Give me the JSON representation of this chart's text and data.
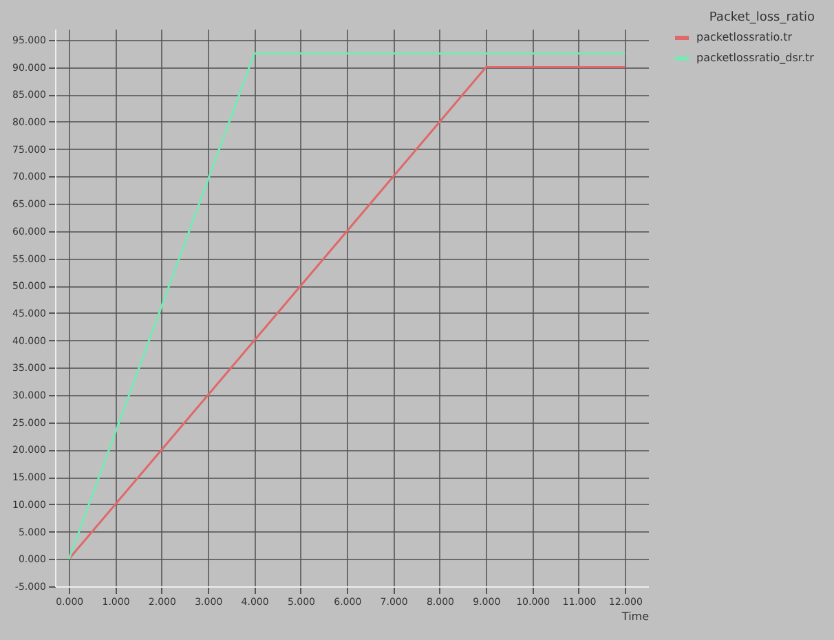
{
  "chart_data": {
    "type": "line",
    "title": "Packet_loss_ratio",
    "xlabel": "Time",
    "xlim": [
      -0.3,
      12.5
    ],
    "ylim": [
      -5,
      97
    ],
    "xticks": [
      {
        "value": 0,
        "label": "0.000"
      },
      {
        "value": 1,
        "label": "1.000"
      },
      {
        "value": 2,
        "label": "2.000"
      },
      {
        "value": 3,
        "label": "3.000"
      },
      {
        "value": 4,
        "label": "4.000"
      },
      {
        "value": 5,
        "label": "5.000"
      },
      {
        "value": 6,
        "label": "6.000"
      },
      {
        "value": 7,
        "label": "7.000"
      },
      {
        "value": 8,
        "label": "8.000"
      },
      {
        "value": 9,
        "label": "9.000"
      },
      {
        "value": 10,
        "label": "10.000"
      },
      {
        "value": 11,
        "label": "11.000"
      },
      {
        "value": 12,
        "label": "12.000"
      }
    ],
    "yticks": [
      {
        "value": -5,
        "label": "-5.000"
      },
      {
        "value": 0,
        "label": "0.000"
      },
      {
        "value": 5,
        "label": "5.000"
      },
      {
        "value": 10,
        "label": "10.000"
      },
      {
        "value": 15,
        "label": "15.000"
      },
      {
        "value": 20,
        "label": "20.000"
      },
      {
        "value": 25,
        "label": "25.000"
      },
      {
        "value": 30,
        "label": "30.000"
      },
      {
        "value": 35,
        "label": "35.000"
      },
      {
        "value": 40,
        "label": "40.000"
      },
      {
        "value": 45,
        "label": "45.000"
      },
      {
        "value": 50,
        "label": "50.000"
      },
      {
        "value": 55,
        "label": "55.000"
      },
      {
        "value": 60,
        "label": "60.000"
      },
      {
        "value": 65,
        "label": "65.000"
      },
      {
        "value": 70,
        "label": "70.000"
      },
      {
        "value": 75,
        "label": "75.000"
      },
      {
        "value": 80,
        "label": "80.000"
      },
      {
        "value": 85,
        "label": "85.000"
      },
      {
        "value": 90,
        "label": "90.000"
      },
      {
        "value": 95,
        "label": "95.000"
      }
    ],
    "grid": true,
    "legend": "top right",
    "marker": "none",
    "line_style": "solid",
    "series": [
      {
        "name": "packetlossratio.tr",
        "color": "#e06868",
        "x": [
          0,
          9,
          12
        ],
        "values": [
          0,
          90,
          90
        ]
      },
      {
        "name": "packetlossratio_dsr.tr",
        "color": "#78e8b4",
        "x": [
          0,
          4,
          12
        ],
        "values": [
          0,
          92.5,
          92.5
        ]
      }
    ]
  }
}
